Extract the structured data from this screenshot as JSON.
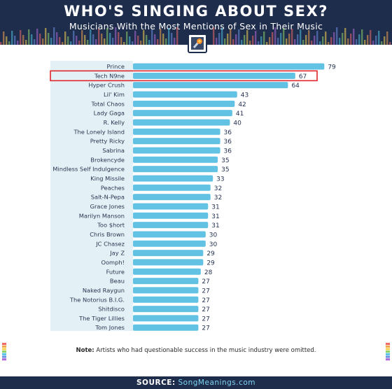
{
  "header": {
    "title": "WHO'S SINGING ABOUT SEX?",
    "subtitle": "Musicians With the Most Mentions of Sex in Their Music",
    "icon": "microphone-icon"
  },
  "chart_data": {
    "type": "bar",
    "orientation": "horizontal",
    "title": "WHO'S SINGING ABOUT SEX?",
    "subtitle": "Musicians With the Most Mentions of Sex in Their Music",
    "categories": [
      "Prince",
      "Tech N9ne",
      "Hyper Crush",
      "Lil' Kim",
      "Total Chaos",
      "Lady Gaga",
      "R. Kelly",
      "The Lonely Island",
      "Pretty Ricky",
      "Sabrina",
      "Brokencyde",
      "Mindless Self Indulgence",
      "King Missile",
      "Peaches",
      "Salt-N-Pepa",
      "Grace Jones",
      "Marilyn Manson",
      "Too $hort",
      "Chris Brown",
      "JC Chasez",
      "Jay Z",
      "Oomph!",
      "Future",
      "Beau",
      "Naked Raygun",
      "The Notorius B.I.G.",
      "Shitdisco",
      "The Tiger Lillies",
      "Tom Jones"
    ],
    "values": [
      79,
      67,
      64,
      43,
      42,
      41,
      40,
      36,
      36,
      36,
      35,
      35,
      33,
      32,
      32,
      31,
      31,
      31,
      30,
      30,
      29,
      29,
      28,
      27,
      27,
      27,
      27,
      27,
      27
    ],
    "highlighted": "Tech N9ne",
    "highlight_color": "#e0262b",
    "bar_color": "#62c2e4",
    "grid": false,
    "legend": "none"
  },
  "note": {
    "label": "Note:",
    "text": "Artists who had questionable success in the music industry were omitted."
  },
  "footer": {
    "label": "SOURCE:",
    "site": "SongMeanings.com"
  }
}
